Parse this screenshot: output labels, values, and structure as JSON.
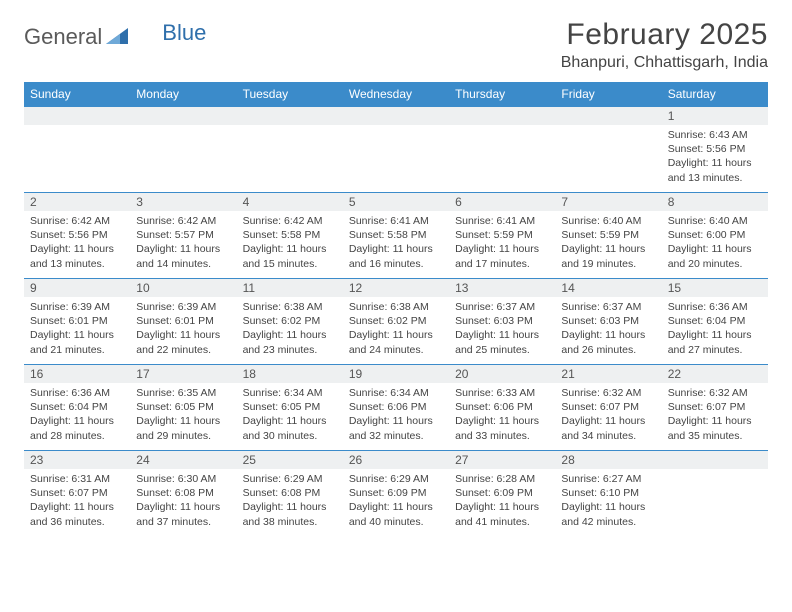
{
  "brand": {
    "part1": "General",
    "part2": "Blue"
  },
  "title": "February 2025",
  "location": "Bhanpuri, Chhattisgarh, India",
  "colors": {
    "header_bg": "#3b8bca",
    "header_text": "#ffffff",
    "row_border": "#3b8bca",
    "daynum_bg": "#eef0f1",
    "body_text": "#444444",
    "page_bg": "#ffffff"
  },
  "typography": {
    "title_fontsize": 30,
    "location_fontsize": 16,
    "weekday_fontsize": 12,
    "detail_fontsize": 10.5
  },
  "weekdays": [
    "Sunday",
    "Monday",
    "Tuesday",
    "Wednesday",
    "Thursday",
    "Friday",
    "Saturday"
  ],
  "weeks": [
    [
      {
        "day": "",
        "sunrise": "",
        "sunset": "",
        "daylight": ""
      },
      {
        "day": "",
        "sunrise": "",
        "sunset": "",
        "daylight": ""
      },
      {
        "day": "",
        "sunrise": "",
        "sunset": "",
        "daylight": ""
      },
      {
        "day": "",
        "sunrise": "",
        "sunset": "",
        "daylight": ""
      },
      {
        "day": "",
        "sunrise": "",
        "sunset": "",
        "daylight": ""
      },
      {
        "day": "",
        "sunrise": "",
        "sunset": "",
        "daylight": ""
      },
      {
        "day": "1",
        "sunrise": "Sunrise: 6:43 AM",
        "sunset": "Sunset: 5:56 PM",
        "daylight": "Daylight: 11 hours and 13 minutes."
      }
    ],
    [
      {
        "day": "2",
        "sunrise": "Sunrise: 6:42 AM",
        "sunset": "Sunset: 5:56 PM",
        "daylight": "Daylight: 11 hours and 13 minutes."
      },
      {
        "day": "3",
        "sunrise": "Sunrise: 6:42 AM",
        "sunset": "Sunset: 5:57 PM",
        "daylight": "Daylight: 11 hours and 14 minutes."
      },
      {
        "day": "4",
        "sunrise": "Sunrise: 6:42 AM",
        "sunset": "Sunset: 5:58 PM",
        "daylight": "Daylight: 11 hours and 15 minutes."
      },
      {
        "day": "5",
        "sunrise": "Sunrise: 6:41 AM",
        "sunset": "Sunset: 5:58 PM",
        "daylight": "Daylight: 11 hours and 16 minutes."
      },
      {
        "day": "6",
        "sunrise": "Sunrise: 6:41 AM",
        "sunset": "Sunset: 5:59 PM",
        "daylight": "Daylight: 11 hours and 17 minutes."
      },
      {
        "day": "7",
        "sunrise": "Sunrise: 6:40 AM",
        "sunset": "Sunset: 5:59 PM",
        "daylight": "Daylight: 11 hours and 19 minutes."
      },
      {
        "day": "8",
        "sunrise": "Sunrise: 6:40 AM",
        "sunset": "Sunset: 6:00 PM",
        "daylight": "Daylight: 11 hours and 20 minutes."
      }
    ],
    [
      {
        "day": "9",
        "sunrise": "Sunrise: 6:39 AM",
        "sunset": "Sunset: 6:01 PM",
        "daylight": "Daylight: 11 hours and 21 minutes."
      },
      {
        "day": "10",
        "sunrise": "Sunrise: 6:39 AM",
        "sunset": "Sunset: 6:01 PM",
        "daylight": "Daylight: 11 hours and 22 minutes."
      },
      {
        "day": "11",
        "sunrise": "Sunrise: 6:38 AM",
        "sunset": "Sunset: 6:02 PM",
        "daylight": "Daylight: 11 hours and 23 minutes."
      },
      {
        "day": "12",
        "sunrise": "Sunrise: 6:38 AM",
        "sunset": "Sunset: 6:02 PM",
        "daylight": "Daylight: 11 hours and 24 minutes."
      },
      {
        "day": "13",
        "sunrise": "Sunrise: 6:37 AM",
        "sunset": "Sunset: 6:03 PM",
        "daylight": "Daylight: 11 hours and 25 minutes."
      },
      {
        "day": "14",
        "sunrise": "Sunrise: 6:37 AM",
        "sunset": "Sunset: 6:03 PM",
        "daylight": "Daylight: 11 hours and 26 minutes."
      },
      {
        "day": "15",
        "sunrise": "Sunrise: 6:36 AM",
        "sunset": "Sunset: 6:04 PM",
        "daylight": "Daylight: 11 hours and 27 minutes."
      }
    ],
    [
      {
        "day": "16",
        "sunrise": "Sunrise: 6:36 AM",
        "sunset": "Sunset: 6:04 PM",
        "daylight": "Daylight: 11 hours and 28 minutes."
      },
      {
        "day": "17",
        "sunrise": "Sunrise: 6:35 AM",
        "sunset": "Sunset: 6:05 PM",
        "daylight": "Daylight: 11 hours and 29 minutes."
      },
      {
        "day": "18",
        "sunrise": "Sunrise: 6:34 AM",
        "sunset": "Sunset: 6:05 PM",
        "daylight": "Daylight: 11 hours and 30 minutes."
      },
      {
        "day": "19",
        "sunrise": "Sunrise: 6:34 AM",
        "sunset": "Sunset: 6:06 PM",
        "daylight": "Daylight: 11 hours and 32 minutes."
      },
      {
        "day": "20",
        "sunrise": "Sunrise: 6:33 AM",
        "sunset": "Sunset: 6:06 PM",
        "daylight": "Daylight: 11 hours and 33 minutes."
      },
      {
        "day": "21",
        "sunrise": "Sunrise: 6:32 AM",
        "sunset": "Sunset: 6:07 PM",
        "daylight": "Daylight: 11 hours and 34 minutes."
      },
      {
        "day": "22",
        "sunrise": "Sunrise: 6:32 AM",
        "sunset": "Sunset: 6:07 PM",
        "daylight": "Daylight: 11 hours and 35 minutes."
      }
    ],
    [
      {
        "day": "23",
        "sunrise": "Sunrise: 6:31 AM",
        "sunset": "Sunset: 6:07 PM",
        "daylight": "Daylight: 11 hours and 36 minutes."
      },
      {
        "day": "24",
        "sunrise": "Sunrise: 6:30 AM",
        "sunset": "Sunset: 6:08 PM",
        "daylight": "Daylight: 11 hours and 37 minutes."
      },
      {
        "day": "25",
        "sunrise": "Sunrise: 6:29 AM",
        "sunset": "Sunset: 6:08 PM",
        "daylight": "Daylight: 11 hours and 38 minutes."
      },
      {
        "day": "26",
        "sunrise": "Sunrise: 6:29 AM",
        "sunset": "Sunset: 6:09 PM",
        "daylight": "Daylight: 11 hours and 40 minutes."
      },
      {
        "day": "27",
        "sunrise": "Sunrise: 6:28 AM",
        "sunset": "Sunset: 6:09 PM",
        "daylight": "Daylight: 11 hours and 41 minutes."
      },
      {
        "day": "28",
        "sunrise": "Sunrise: 6:27 AM",
        "sunset": "Sunset: 6:10 PM",
        "daylight": "Daylight: 11 hours and 42 minutes."
      },
      {
        "day": "",
        "sunrise": "",
        "sunset": "",
        "daylight": ""
      }
    ]
  ]
}
